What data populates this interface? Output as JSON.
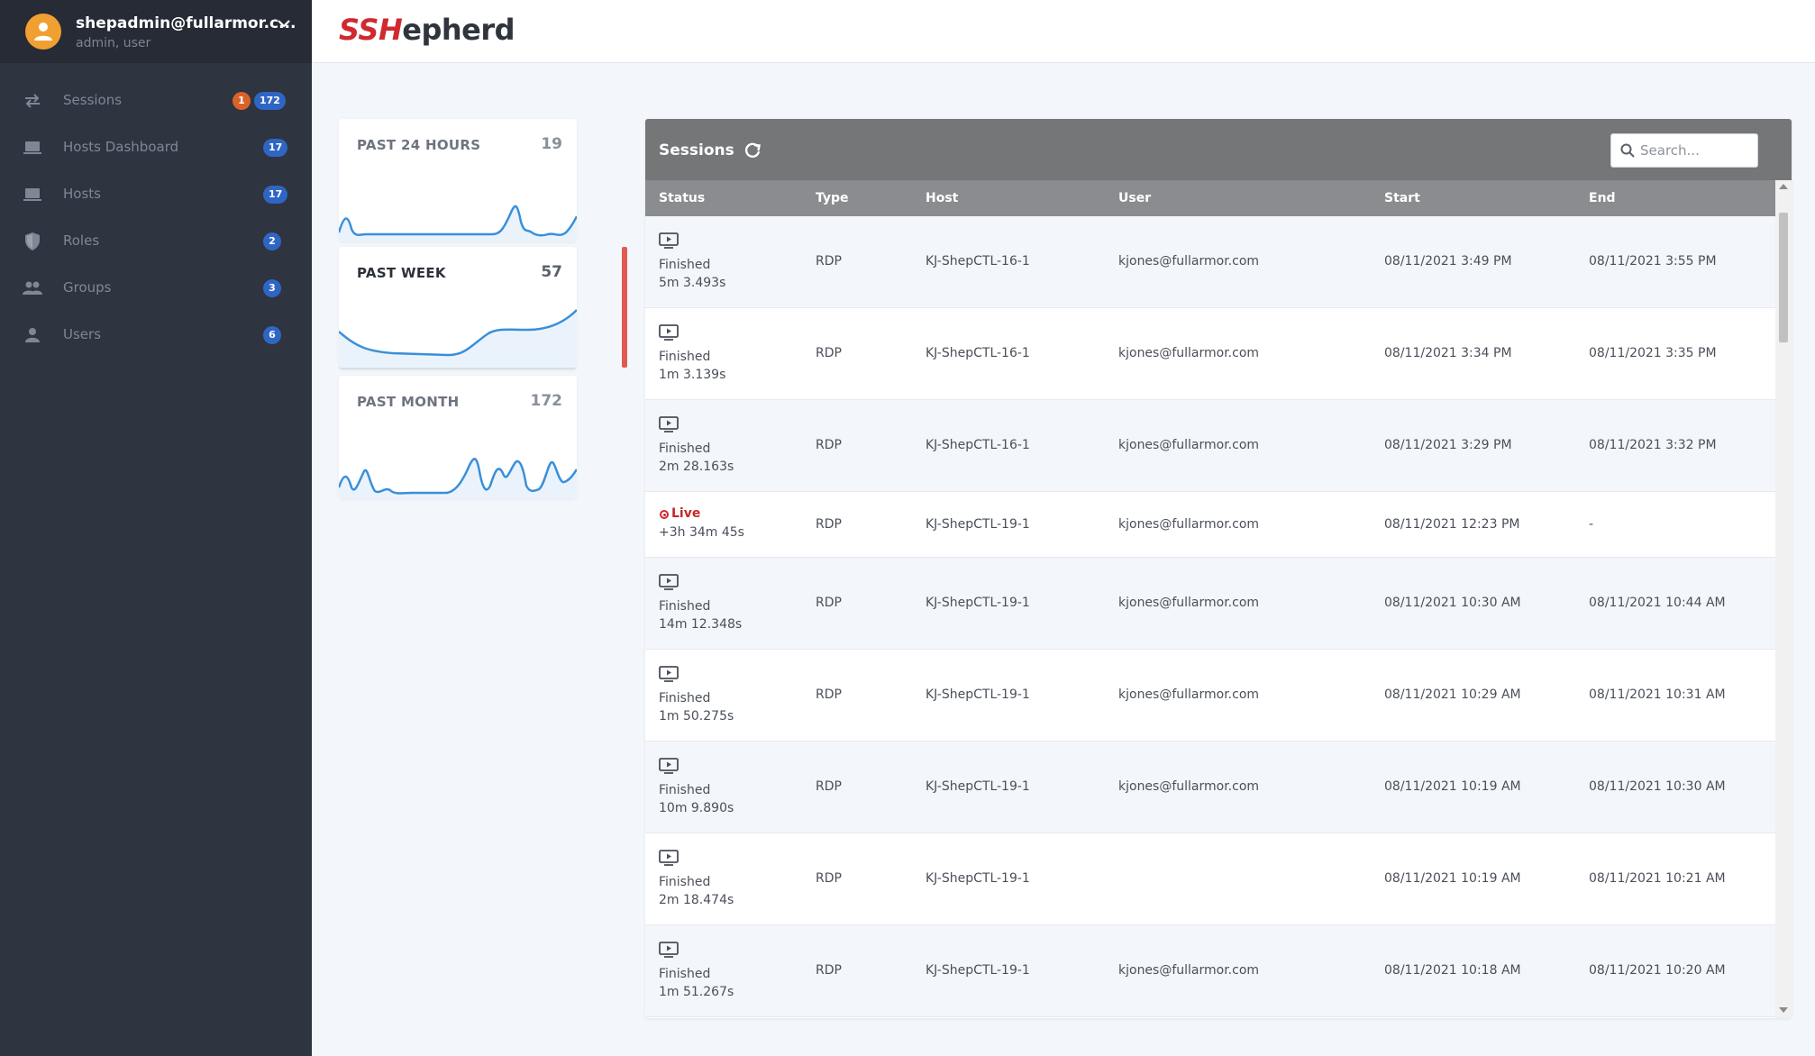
{
  "user": {
    "email": "shepadmin@fullarmor.c...",
    "roles": "admin, user"
  },
  "logo": {
    "ssh": "SSH",
    "rest": "epherd"
  },
  "sidebar": {
    "items": [
      {
        "label": "Sessions",
        "icon": "swap-arrows-icon",
        "badge": "172",
        "badge_extra": "1"
      },
      {
        "label": "Hosts Dashboard",
        "icon": "laptop-icon",
        "badge": "17"
      },
      {
        "label": "Hosts",
        "icon": "laptop-icon",
        "badge": "17"
      },
      {
        "label": "Roles",
        "icon": "shield-icon",
        "badge": "2"
      },
      {
        "label": "Groups",
        "icon": "group-icon",
        "badge": "3"
      },
      {
        "label": "Users",
        "icon": "person-icon",
        "badge": "6"
      }
    ]
  },
  "stats": [
    {
      "title": "PAST 24 HOURS",
      "value": "19"
    },
    {
      "title": "PAST WEEK",
      "value": "57"
    },
    {
      "title": "PAST MONTH",
      "value": "172"
    }
  ],
  "sessions": {
    "title": "Sessions",
    "search_placeholder": "Search...",
    "columns": [
      "Status",
      "Type",
      "Host",
      "User",
      "Start",
      "End"
    ],
    "rows": [
      {
        "status": "Finished",
        "duration": "5m 3.493s",
        "type": "RDP",
        "host": "KJ-ShepCTL-16-1",
        "user": "kjones@fullarmor.com",
        "start": "08/11/2021 3:49 PM",
        "end": "08/11/2021 3:55 PM"
      },
      {
        "status": "Finished",
        "duration": "1m 3.139s",
        "type": "RDP",
        "host": "KJ-ShepCTL-16-1",
        "user": "kjones@fullarmor.com",
        "start": "08/11/2021 3:34 PM",
        "end": "08/11/2021 3:35 PM"
      },
      {
        "status": "Finished",
        "duration": "2m 28.163s",
        "type": "RDP",
        "host": "KJ-ShepCTL-16-1",
        "user": "kjones@fullarmor.com",
        "start": "08/11/2021 3:29 PM",
        "end": "08/11/2021 3:32 PM"
      },
      {
        "status": "Live",
        "duration": "+3h 34m 45s",
        "type": "RDP",
        "host": "KJ-ShepCTL-19-1",
        "user": "kjones@fullarmor.com",
        "start": "08/11/2021 12:23 PM",
        "end": "-"
      },
      {
        "status": "Finished",
        "duration": "14m 12.348s",
        "type": "RDP",
        "host": "KJ-ShepCTL-19-1",
        "user": "kjones@fullarmor.com",
        "start": "08/11/2021 10:30 AM",
        "end": "08/11/2021 10:44 AM"
      },
      {
        "status": "Finished",
        "duration": "1m 50.275s",
        "type": "RDP",
        "host": "KJ-ShepCTL-19-1",
        "user": "kjones@fullarmor.com",
        "start": "08/11/2021 10:29 AM",
        "end": "08/11/2021 10:31 AM"
      },
      {
        "status": "Finished",
        "duration": "10m 9.890s",
        "type": "RDP",
        "host": "KJ-ShepCTL-19-1",
        "user": "kjones@fullarmor.com",
        "start": "08/11/2021 10:19 AM",
        "end": "08/11/2021 10:30 AM"
      },
      {
        "status": "Finished",
        "duration": "2m 18.474s",
        "type": "RDP",
        "host": "KJ-ShepCTL-19-1",
        "user": "",
        "start": "08/11/2021 10:19 AM",
        "end": "08/11/2021 10:21 AM"
      },
      {
        "status": "Finished",
        "duration": "1m 51.267s",
        "type": "RDP",
        "host": "KJ-ShepCTL-19-1",
        "user": "kjones@fullarmor.com",
        "start": "08/11/2021 10:18 AM",
        "end": "08/11/2021 10:20 AM"
      }
    ]
  },
  "colors": {
    "sidebar": "#2e3440",
    "accent_red": "#d0292f",
    "badge_blue": "#2f66c4",
    "badge_orange": "#d9622b",
    "sparkline": "#3a8fd8"
  }
}
